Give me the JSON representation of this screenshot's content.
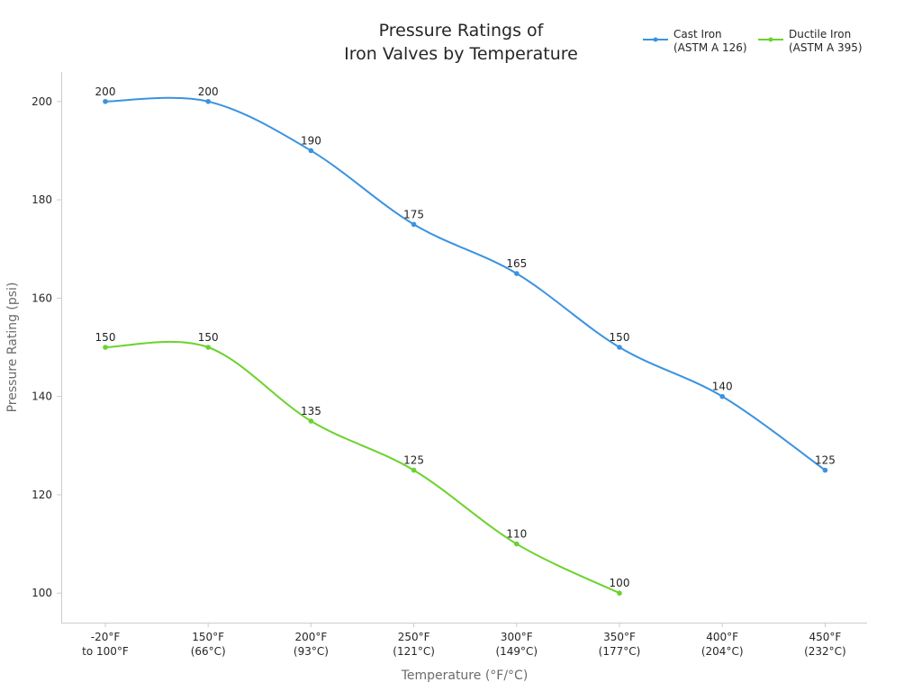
{
  "chart_data": {
    "type": "line",
    "title": [
      "Pressure Ratings of",
      "Iron Valves by Temperature"
    ],
    "xlabel": "Temperature (°F/°C)",
    "ylabel": "Pressure Rating (psi)",
    "categories": [
      [
        "-20°F",
        "to 100°F"
      ],
      [
        "150°F",
        "(66°C)"
      ],
      [
        "200°F",
        "(93°C)"
      ],
      [
        "250°F",
        "(121°C)"
      ],
      [
        "300°F",
        "(149°C)"
      ],
      [
        "350°F",
        "(177°C)"
      ],
      [
        "400°F",
        "(204°C)"
      ],
      [
        "450°F",
        "(232°C)"
      ]
    ],
    "yticks": [
      100,
      120,
      140,
      160,
      180,
      200
    ],
    "ylim": [
      94,
      206
    ],
    "grid": false,
    "legend_position": "top-right",
    "series": [
      {
        "name": [
          "Cast Iron",
          "(ASTM A 126)"
        ],
        "color": "#3a93e0",
        "values": [
          200,
          200,
          190,
          175,
          165,
          150,
          140,
          125
        ]
      },
      {
        "name": [
          "Ductile Iron",
          "(ASTM A 395)"
        ],
        "color": "#6bd22e",
        "values": [
          150,
          150,
          135,
          125,
          110,
          100,
          null,
          null
        ]
      }
    ]
  }
}
